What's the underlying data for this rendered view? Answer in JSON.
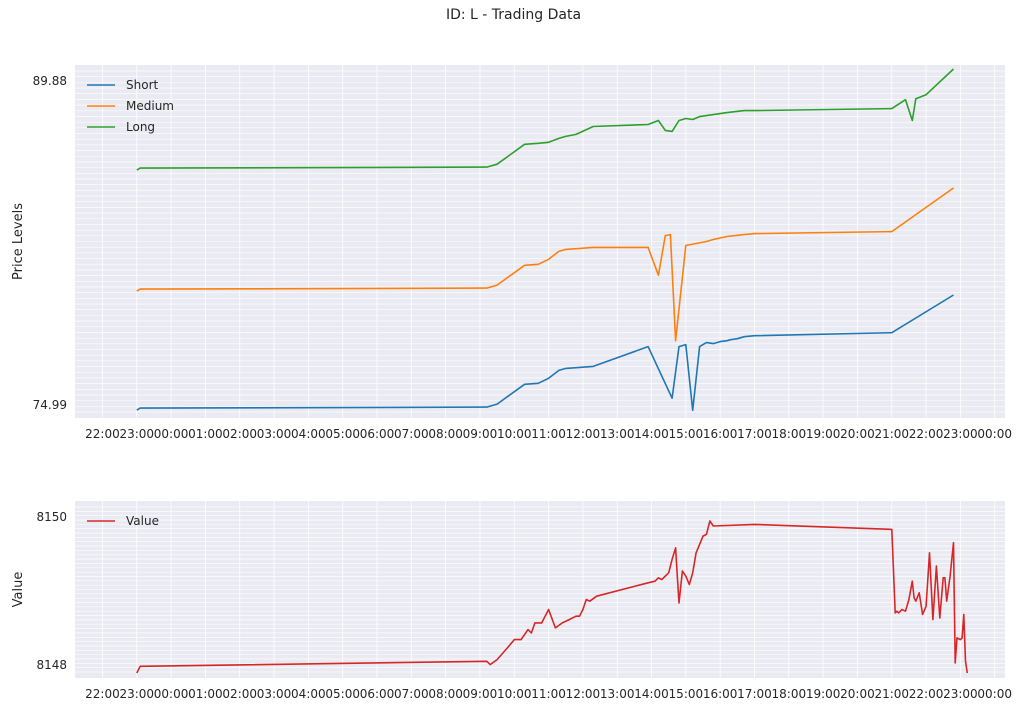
{
  "title": "ID: L - Trading Data",
  "chart_data": [
    {
      "type": "line",
      "ylabel": "Price Levels",
      "xlabel": "",
      "x_ticks": [
        "22:00",
        "23:00",
        "00:00",
        "01:00",
        "02:00",
        "03:00",
        "04:00",
        "05:00",
        "06:00",
        "07:00",
        "08:00",
        "09:00",
        "10:00",
        "11:00",
        "12:00",
        "13:00",
        "14:00",
        "15:00",
        "16:00",
        "17:00",
        "18:00",
        "19:00",
        "20:00",
        "21:00",
        "22:00",
        "23:00",
        "00:00"
      ],
      "y_tick_first": "74.99",
      "y_tick_last": "89.88",
      "legend": "upper-left",
      "grid": true,
      "series": [
        {
          "name": "Short",
          "color": "#1f77b4",
          "x": [
            23.0,
            23.1,
            33.2,
            33.5,
            34.3,
            34.7,
            35.0,
            35.3,
            35.5,
            36.3,
            37.9,
            38.6,
            38.8,
            39.0,
            39.2,
            39.4,
            39.6,
            39.8,
            40.0,
            40.2,
            40.3,
            40.5,
            40.7,
            41.0,
            45.0,
            46.8
          ],
          "y": [
            75.0,
            75.1,
            75.15,
            75.3,
            76.3,
            76.35,
            76.6,
            77.0,
            77.1,
            77.2,
            78.2,
            75.6,
            78.2,
            78.3,
            74.99,
            78.2,
            78.4,
            78.35,
            78.45,
            78.5,
            78.55,
            78.6,
            78.7,
            78.75,
            78.9,
            80.8
          ]
        },
        {
          "name": "Medium",
          "color": "#ff7f0e",
          "x": [
            23.0,
            23.1,
            33.2,
            33.5,
            34.3,
            34.7,
            35.0,
            35.3,
            35.5,
            36.3,
            37.9,
            38.2,
            38.4,
            38.55,
            38.7,
            39.0,
            39.3,
            39.6,
            39.8,
            40.2,
            40.7,
            41.0,
            45.0,
            46.8
          ],
          "y": [
            81.0,
            81.1,
            81.15,
            81.3,
            82.3,
            82.35,
            82.6,
            83.0,
            83.1,
            83.2,
            83.2,
            81.8,
            83.8,
            83.85,
            78.5,
            83.3,
            83.4,
            83.5,
            83.6,
            83.75,
            83.85,
            83.9,
            84.0,
            86.2
          ]
        },
        {
          "name": "Long",
          "color": "#2ca02c",
          "x": [
            23.0,
            23.1,
            33.2,
            33.5,
            34.3,
            34.7,
            35.0,
            35.3,
            35.5,
            35.8,
            36.3,
            37.9,
            38.2,
            38.4,
            38.6,
            38.8,
            39.0,
            39.2,
            39.4,
            39.6,
            39.8,
            40.2,
            40.7,
            41.0,
            45.0,
            45.4,
            45.6,
            45.7,
            46.0,
            46.8
          ],
          "y": [
            87.1,
            87.2,
            87.25,
            87.4,
            88.4,
            88.45,
            88.5,
            88.7,
            88.8,
            88.9,
            89.3,
            89.4,
            89.6,
            89.1,
            89.05,
            89.6,
            89.7,
            89.65,
            89.8,
            89.85,
            89.9,
            90.0,
            90.1,
            90.1,
            90.2,
            90.65,
            89.6,
            90.7,
            90.9,
            92.2
          ]
        }
      ]
    },
    {
      "type": "line",
      "ylabel": "Value",
      "xlabel": "",
      "x_ticks": [
        "22:00",
        "23:00",
        "00:00",
        "01:00",
        "02:00",
        "03:00",
        "04:00",
        "05:00",
        "06:00",
        "07:00",
        "08:00",
        "09:00",
        "10:00",
        "11:00",
        "12:00",
        "13:00",
        "14:00",
        "15:00",
        "16:00",
        "17:00",
        "18:00",
        "19:00",
        "20:00",
        "21:00",
        "22:00",
        "23:00",
        "00:00"
      ],
      "y_tick_first": "8148",
      "y_tick_last": "8150",
      "legend": "upper-left",
      "grid": true,
      "series": [
        {
          "name": "Value",
          "color": "#d62728",
          "x": [
            23.0,
            23.1,
            33.2,
            33.3,
            33.5,
            33.8,
            34.0,
            34.2,
            34.4,
            34.5,
            34.6,
            34.8,
            35.0,
            35.2,
            35.4,
            35.6,
            35.8,
            35.9,
            36.0,
            36.05,
            36.1,
            36.2,
            36.4,
            37.9,
            38.1,
            38.2,
            38.3,
            38.5,
            38.6,
            38.7,
            38.75,
            38.8,
            38.9,
            39.0,
            39.1,
            39.2,
            39.3,
            39.4,
            39.5,
            39.6,
            39.7,
            39.8,
            41.0,
            45.0,
            45.1,
            45.15,
            45.2,
            45.3,
            45.4,
            45.5,
            45.6,
            45.65,
            45.7,
            45.8,
            45.9,
            46.0,
            46.1,
            46.2,
            46.3,
            46.4,
            46.5,
            46.55,
            46.6,
            46.7,
            46.8,
            46.85,
            46.9,
            47.0,
            47.05,
            47.1,
            47.15,
            47.2
          ],
          "y": [
            0.0,
            0.04,
            0.07,
            0.05,
            0.08,
            0.15,
            0.2,
            0.2,
            0.26,
            0.24,
            0.3,
            0.3,
            0.38,
            0.27,
            0.3,
            0.32,
            0.34,
            0.34,
            0.38,
            0.41,
            0.44,
            0.43,
            0.46,
            0.54,
            0.55,
            0.57,
            0.56,
            0.6,
            0.68,
            0.75,
            0.58,
            0.42,
            0.61,
            0.58,
            0.53,
            0.6,
            0.72,
            0.77,
            0.82,
            0.83,
            0.91,
            0.88,
            0.89,
            0.86,
            0.36,
            0.37,
            0.36,
            0.38,
            0.37,
            0.44,
            0.55,
            0.45,
            0.43,
            0.48,
            0.35,
            0.4,
            0.72,
            0.32,
            0.64,
            0.33,
            0.57,
            0.57,
            0.43,
            0.58,
            0.78,
            0.06,
            0.21,
            0.2,
            0.21,
            0.35,
            0.07,
            0.0
          ]
        }
      ]
    }
  ]
}
